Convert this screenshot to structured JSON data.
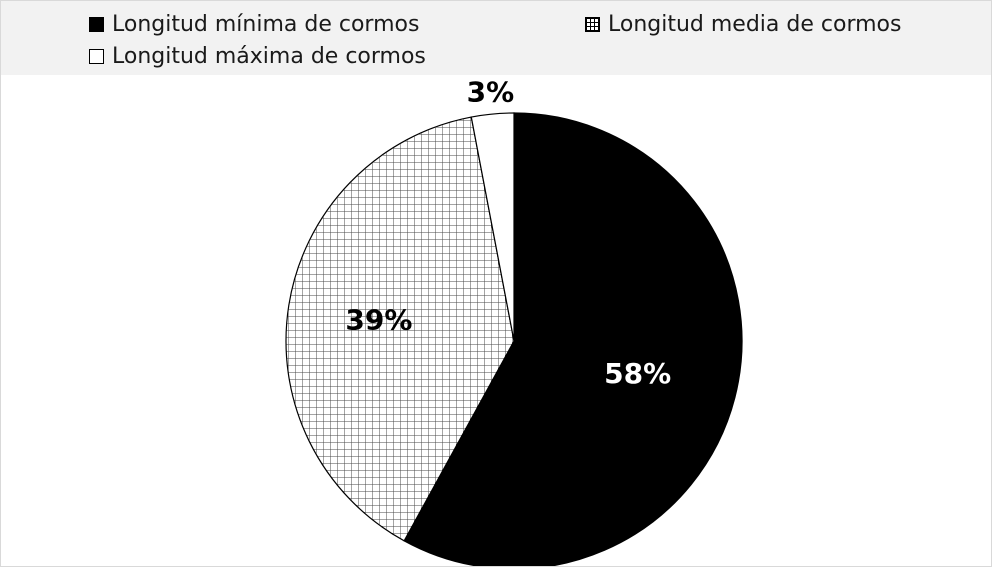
{
  "chart_data": {
    "type": "pie",
    "categories": [
      "Longitud mínima de cormos",
      "Longitud media de cormos",
      "Longitud máxima de cormos"
    ],
    "values": [
      58,
      39,
      3
    ],
    "data_labels": [
      "58%",
      "39%",
      "3%"
    ],
    "legend_position": "top",
    "slice_fills": [
      "solid-black",
      "grid-hatch",
      "white"
    ],
    "colors": {
      "black": "#000000",
      "grid": "#555555",
      "white": "#ffffff",
      "legend_bg": "#f2f2f2"
    }
  },
  "legend": {
    "items": [
      {
        "label": "Longitud mínima de cormos",
        "swatch": "solid-black"
      },
      {
        "label": "Longitud media de cormos",
        "swatch": "grid-hatch"
      },
      {
        "label": "Longitud máxima de cormos",
        "swatch": "white"
      }
    ]
  }
}
